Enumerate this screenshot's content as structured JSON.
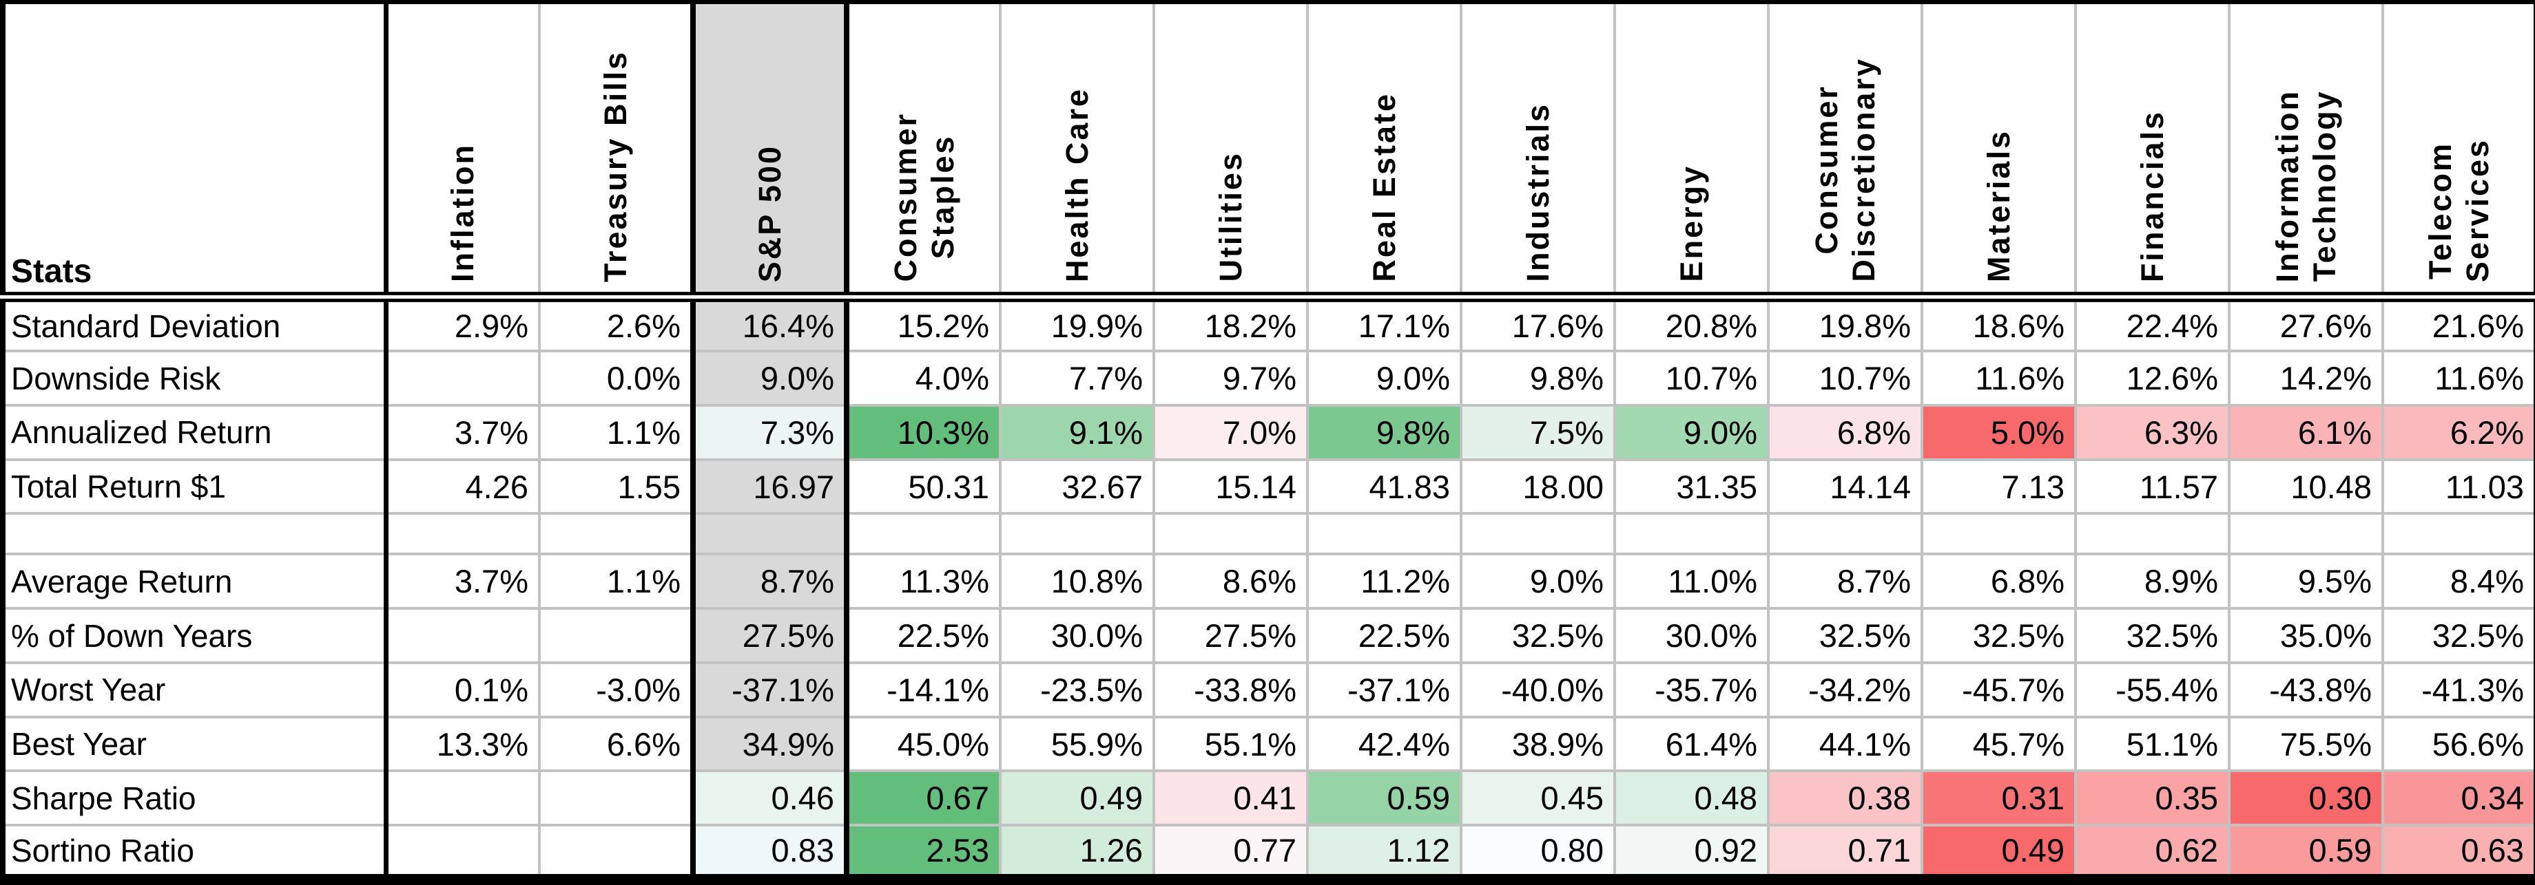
{
  "chart_data": {
    "type": "table",
    "title": "Asset class and sector statistics table",
    "corner_label": "Stats",
    "highlight_column": "S&P 500",
    "columns": [
      "Inflation",
      "Treasury Bills",
      "S&P 500",
      "Consumer Staples",
      "Health Care",
      "Utilities",
      "Real Estate",
      "Industrials",
      "Energy",
      "Consumer Discretionary",
      "Materials",
      "Financials",
      "Information Technology",
      "Telecom Services"
    ],
    "column_display": [
      "Inflation",
      "Treasury Bills",
      "S&P 500",
      "Consumer\nStaples",
      "Health Care",
      "Utilities",
      "Real Estate",
      "Industrials",
      "Energy",
      "Consumer\nDiscretionary",
      "Materials",
      "Financials",
      "Information\nTechnology",
      "Telecom\nServices"
    ],
    "colors": {
      "highlight_bg": "#d9d9d9",
      "grid": "#c2c2c2",
      "border": "#000000",
      "scale_green": "#63be7b",
      "scale_white": "#fcfcff",
      "scale_red": "#f8696b"
    },
    "rows": [
      {
        "label": "Standard Deviation",
        "blank": false,
        "values": [
          "2.9%",
          "2.6%",
          "16.4%",
          "15.2%",
          "19.9%",
          "18.2%",
          "17.1%",
          "17.6%",
          "20.8%",
          "19.8%",
          "18.6%",
          "22.4%",
          "27.6%",
          "21.6%"
        ],
        "bg": [
          "",
          "",
          "#d9d9d9",
          "",
          "",
          "",
          "",
          "",
          "",
          "",
          "",
          "",
          "",
          ""
        ]
      },
      {
        "label": "Downside Risk",
        "blank": false,
        "values": [
          "",
          "0.0%",
          "9.0%",
          "4.0%",
          "7.7%",
          "9.7%",
          "9.0%",
          "9.8%",
          "10.7%",
          "10.7%",
          "11.6%",
          "12.6%",
          "14.2%",
          "11.6%"
        ],
        "bg": [
          "",
          "",
          "#d9d9d9",
          "",
          "",
          "",
          "",
          "",
          "",
          "",
          "",
          "",
          "",
          ""
        ]
      },
      {
        "label": "Annualized Return",
        "blank": false,
        "values": [
          "3.7%",
          "1.1%",
          "7.3%",
          "10.3%",
          "9.1%",
          "7.0%",
          "9.8%",
          "7.5%",
          "9.0%",
          "6.8%",
          "5.0%",
          "6.3%",
          "6.1%",
          "6.2%"
        ],
        "bg": [
          "",
          "",
          "#edf5f4",
          "#63be7b",
          "#9dd6ad",
          "#fbedf0",
          "#7bc890",
          "#e4f1ea",
          "#a2d8b2",
          "#fbe4e7",
          "#f8696b",
          "#fac2c5",
          "#fab4b7",
          "#fab9bc"
        ]
      },
      {
        "label": "Total Return $1",
        "blank": false,
        "values": [
          "4.26",
          "1.55",
          "16.97",
          "50.31",
          "32.67",
          "15.14",
          "41.83",
          "18.00",
          "31.35",
          "14.14",
          "7.13",
          "11.57",
          "10.48",
          "11.03"
        ],
        "bg": [
          "",
          "",
          "#d9d9d9",
          "",
          "",
          "",
          "",
          "",
          "",
          "",
          "",
          "",
          "",
          ""
        ]
      },
      {
        "label": "",
        "blank": true,
        "values": [
          "",
          "",
          "",
          "",
          "",
          "",
          "",
          "",
          "",
          "",
          "",
          "",
          "",
          ""
        ],
        "bg": [
          "",
          "",
          "#d9d9d9",
          "",
          "",
          "",
          "",
          "",
          "",
          "",
          "",
          "",
          "",
          ""
        ]
      },
      {
        "label": "Average Return",
        "blank": false,
        "values": [
          "3.7%",
          "1.1%",
          "8.7%",
          "11.3%",
          "10.8%",
          "8.6%",
          "11.2%",
          "9.0%",
          "11.0%",
          "8.7%",
          "6.8%",
          "8.9%",
          "9.5%",
          "8.4%"
        ],
        "bg": [
          "",
          "",
          "#d9d9d9",
          "",
          "",
          "",
          "",
          "",
          "",
          "",
          "",
          "",
          "",
          ""
        ]
      },
      {
        "label": "% of Down Years",
        "blank": false,
        "values": [
          "",
          "",
          "27.5%",
          "22.5%",
          "30.0%",
          "27.5%",
          "22.5%",
          "32.5%",
          "30.0%",
          "32.5%",
          "32.5%",
          "32.5%",
          "35.0%",
          "32.5%"
        ],
        "bg": [
          "",
          "",
          "#d9d9d9",
          "",
          "",
          "",
          "",
          "",
          "",
          "",
          "",
          "",
          "",
          ""
        ]
      },
      {
        "label": "Worst Year",
        "blank": false,
        "values": [
          "0.1%",
          "-3.0%",
          "-37.1%",
          "-14.1%",
          "-23.5%",
          "-33.8%",
          "-37.1%",
          "-40.0%",
          "-35.7%",
          "-34.2%",
          "-45.7%",
          "-55.4%",
          "-43.8%",
          "-41.3%"
        ],
        "bg": [
          "",
          "",
          "#d9d9d9",
          "",
          "",
          "",
          "",
          "",
          "",
          "",
          "",
          "",
          "",
          ""
        ]
      },
      {
        "label": "Best Year",
        "blank": false,
        "values": [
          "13.3%",
          "6.6%",
          "34.9%",
          "45.0%",
          "55.9%",
          "55.1%",
          "42.4%",
          "38.9%",
          "61.4%",
          "44.1%",
          "45.7%",
          "51.1%",
          "75.5%",
          "56.6%"
        ],
        "bg": [
          "",
          "",
          "#d9d9d9",
          "",
          "",
          "",
          "",
          "",
          "",
          "",
          "",
          "",
          "",
          ""
        ]
      },
      {
        "label": "Sharpe Ratio",
        "blank": false,
        "values": [
          "",
          "",
          "0.46",
          "0.67",
          "0.49",
          "0.41",
          "0.59",
          "0.45",
          "0.48",
          "0.38",
          "0.31",
          "0.35",
          "0.30",
          "0.34"
        ],
        "bg": [
          "",
          "",
          "#e9f4ef",
          "#63be7b",
          "#d6edde",
          "#fbe5e8",
          "#96d3a7",
          "#eaf4ef",
          "#dcefe4",
          "#fac3c6",
          "#f87476",
          "#faa2a4",
          "#f8696b",
          "#f99699"
        ]
      },
      {
        "label": "Sortino Ratio",
        "blank": false,
        "values": [
          "",
          "",
          "0.83",
          "2.53",
          "1.26",
          "0.77",
          "1.12",
          "0.80",
          "0.92",
          "0.71",
          "0.49",
          "0.62",
          "0.59",
          "0.63"
        ],
        "bg": [
          "",
          "",
          "#f0f7f8",
          "#63be7b",
          "#d2ebdb",
          "#fcf5f7",
          "#dff0e6",
          "#fbfcfe",
          "#f0f7f5",
          "#fbd7d9",
          "#f8696b",
          "#faaaac",
          "#f99b9d",
          "#faafb1"
        ]
      }
    ]
  }
}
